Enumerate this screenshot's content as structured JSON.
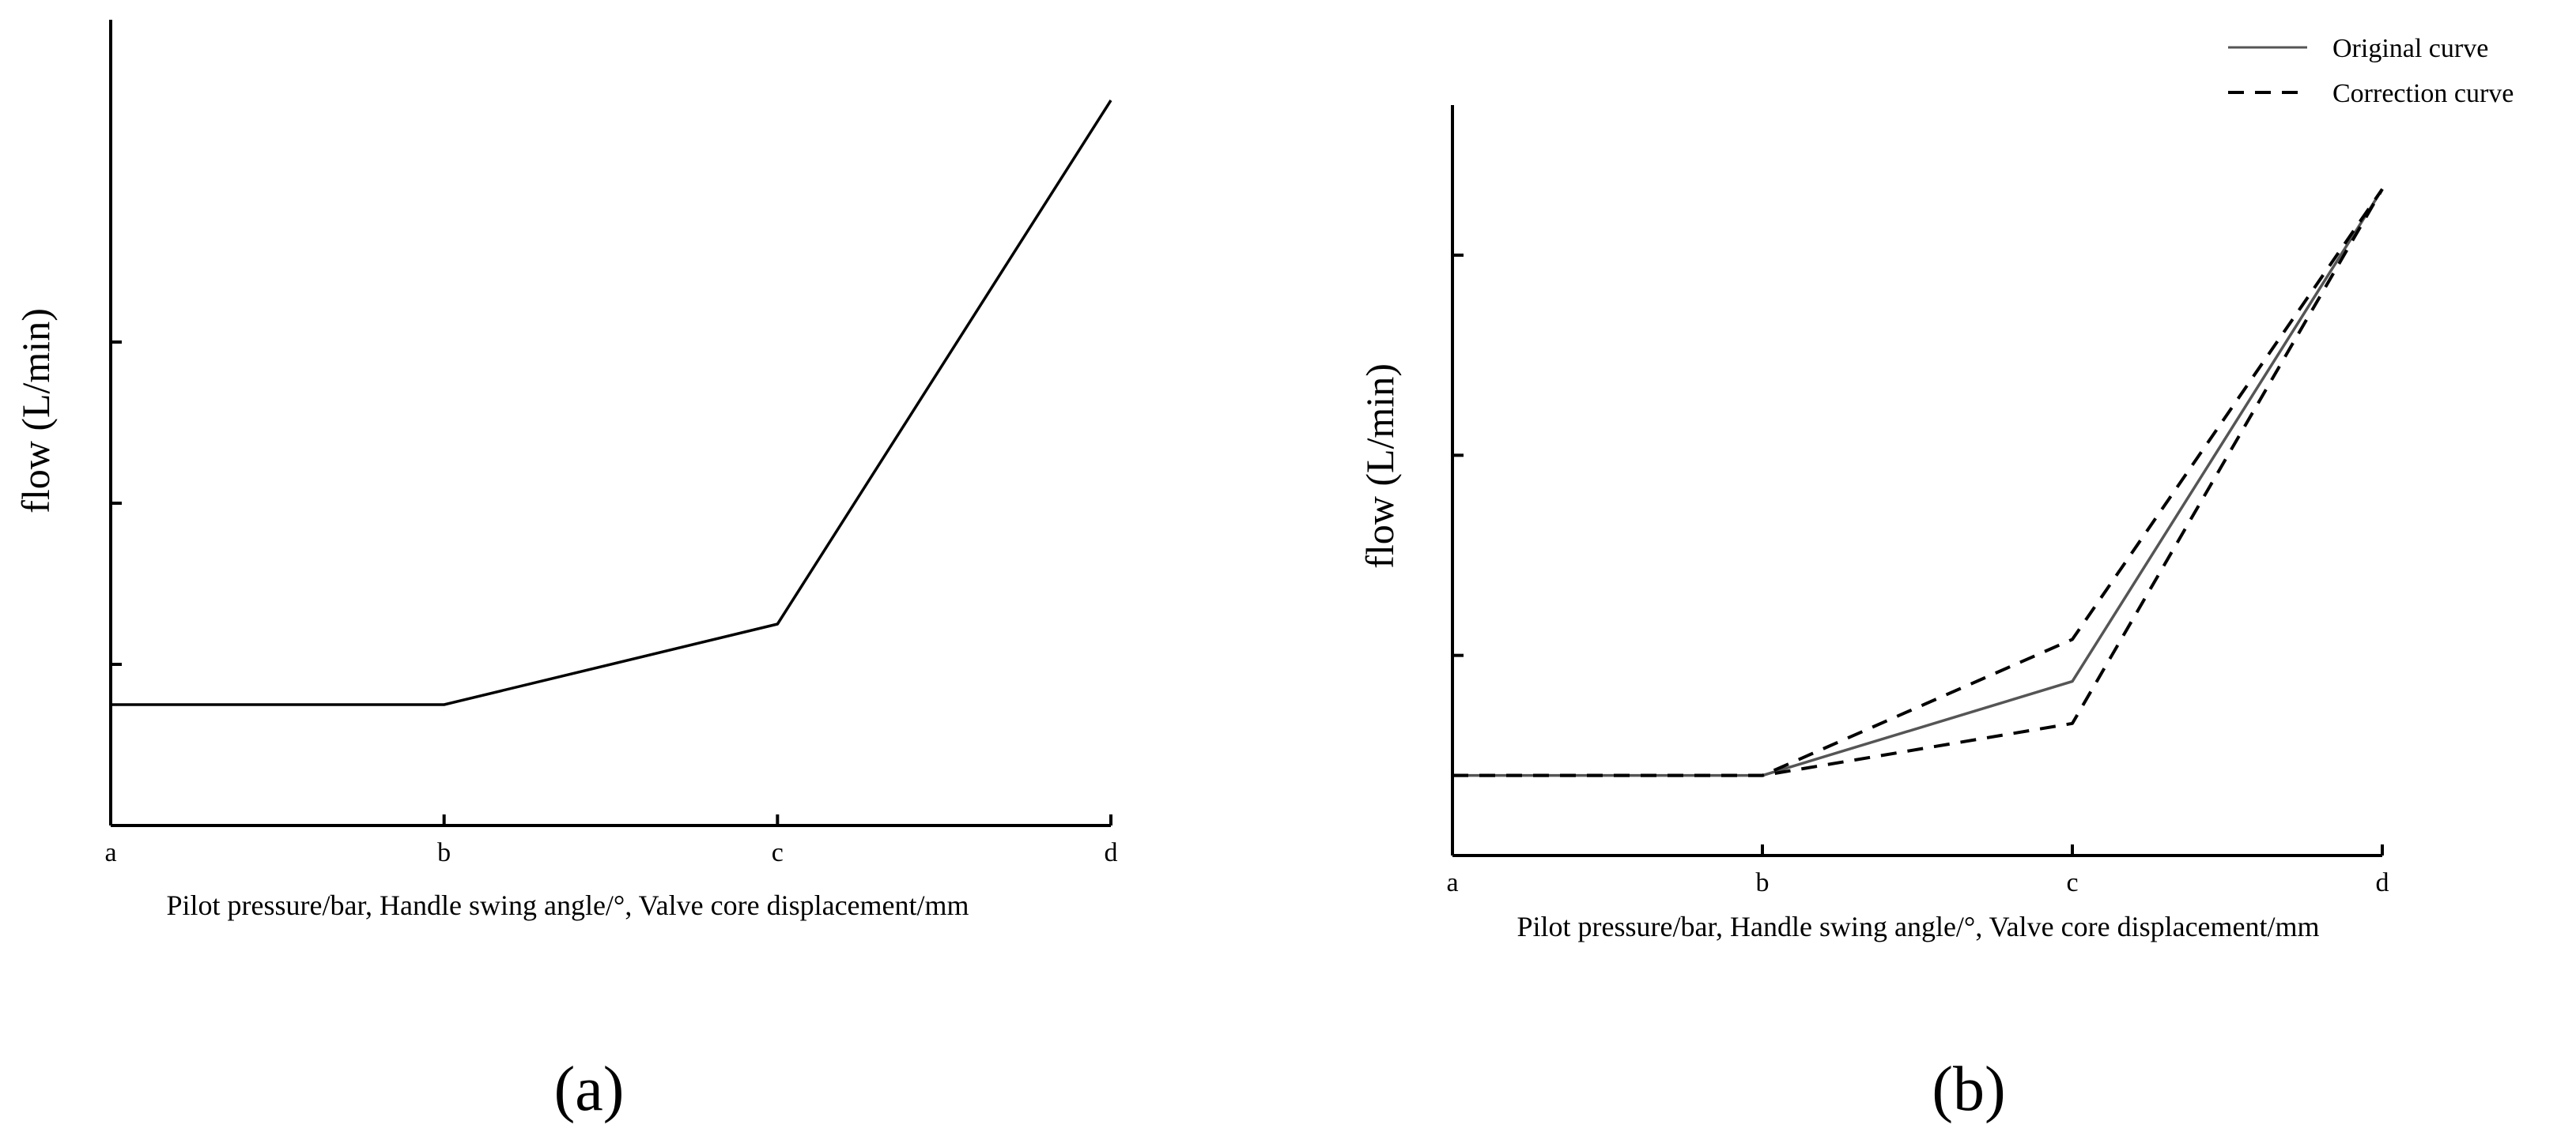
{
  "chart_data": [
    {
      "type": "line",
      "panel_label": "(a)",
      "xlabel": "Pilot pressure/bar, Handle swing angle/°, Valve core displacement/mm",
      "ylabel": "flow (L/min)",
      "categories": [
        "a",
        "b",
        "c",
        "d"
      ],
      "series": [
        {
          "values": [
            0.75,
            0.75,
            1.25,
            4.5
          ],
          "color": "#000000",
          "dash": "solid"
        }
      ],
      "ylim": [
        0,
        5
      ],
      "y_ticks": [
        1,
        2,
        3
      ],
      "grid": false
    },
    {
      "type": "line",
      "panel_label": "(b)",
      "xlabel": "Pilot pressure/bar, Handle swing angle/°, Valve core displacement/mm",
      "ylabel": "flow (L/min)",
      "categories": [
        "a",
        "b",
        "c",
        "d"
      ],
      "series": [
        {
          "name": "Original curve",
          "values": [
            0.4,
            0.4,
            0.87,
            3.33
          ],
          "color": "#555555",
          "dash": "solid"
        },
        {
          "name": "Correction curve",
          "values": [
            0.4,
            0.4,
            1.08,
            3.33
          ],
          "color": "#000000",
          "dash": "dashed"
        },
        {
          "name": "",
          "values": [
            0.4,
            0.4,
            0.66,
            3.33
          ],
          "color": "#000000",
          "dash": "dashed"
        }
      ],
      "ylim": [
        0,
        3.75
      ],
      "y_ticks": [
        1,
        2,
        3
      ],
      "grid": false,
      "legend_position": "top-right"
    }
  ]
}
